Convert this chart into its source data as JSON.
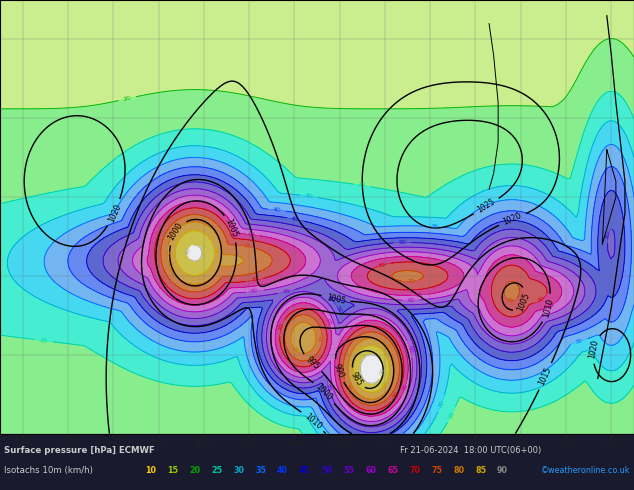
{
  "title_line1": "Surface pressure [hPa] ECMWF",
  "title_line2": "Isotachs 10m (km/h)",
  "date_str": "Fr 21-06-2024  18:00 UTC(06+00)",
  "copyright": "©weatheronline.co.uk",
  "figwidth": 6.34,
  "figheight": 4.9,
  "dpi": 100,
  "map_bg": "#c8ccd8",
  "bottom_bg": "#1a1a2e",
  "isotach_fill_colors": [
    "#ffffaa",
    "#ccff66",
    "#66ff66",
    "#00ffcc",
    "#00ddff",
    "#44aaff",
    "#3366ff",
    "#2233cc",
    "#5533cc",
    "#8833cc",
    "#cc44cc",
    "#cc0077",
    "#cc2222",
    "#cc5500",
    "#cc8800",
    "#ccbb00",
    "#ffffff"
  ],
  "isotach_line_colors": [
    "#ffcc00",
    "#99cc00",
    "#00aa00",
    "#00ccaa",
    "#00aacc",
    "#0066ff",
    "#0033ff",
    "#0000cc",
    "#3300cc",
    "#6600cc",
    "#9900cc",
    "#cc0099",
    "#cc0000",
    "#cc4400",
    "#cc7700",
    "#ccaa00",
    "#aaaaaa"
  ],
  "legend_colors": [
    "#ffcc00",
    "#99cc00",
    "#00aa00",
    "#00ccaa",
    "#00aacc",
    "#0066ff",
    "#0033ff",
    "#0000cc",
    "#3300cc",
    "#6600cc",
    "#9900cc",
    "#cc0099",
    "#cc0000",
    "#cc4400",
    "#cc7700",
    "#ccaa00",
    "#888888"
  ],
  "legend_vals": [
    10,
    15,
    20,
    25,
    30,
    35,
    40,
    45,
    50,
    55,
    60,
    65,
    70,
    75,
    80,
    85,
    90
  ],
  "isotach_levels": [
    10,
    15,
    20,
    25,
    30,
    35,
    40,
    45,
    50,
    55,
    60,
    65,
    70,
    75,
    80,
    85,
    90,
    100
  ]
}
